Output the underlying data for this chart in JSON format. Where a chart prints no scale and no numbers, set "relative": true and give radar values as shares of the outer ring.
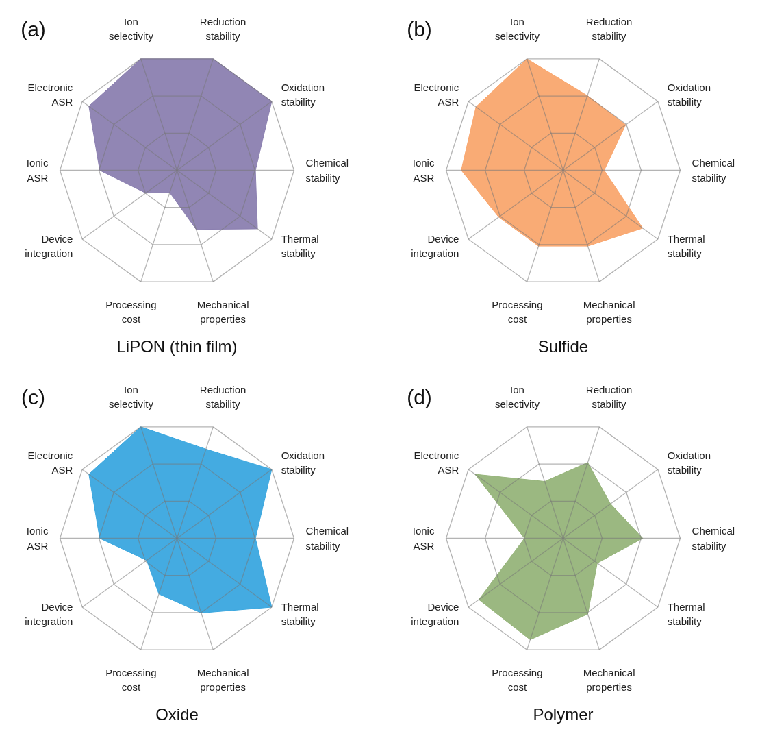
{
  "chart_data": [
    {
      "type": "radar",
      "title": "LiPON (thin film)",
      "annotations": [
        "(a)"
      ],
      "relative": true,
      "grid": true,
      "categories": [
        "Reduction stability",
        "Oxidation stability",
        "Chemical stability",
        "Thermal stability",
        "Mechanical properties",
        "Processing cost",
        "Device integration",
        "Ionic ASR",
        "Electronic ASR",
        "Ion selectivity"
      ],
      "series": [
        {
          "color": "#8b7fb0",
          "values": [
            1,
            1,
            0.67,
            0.85,
            0.53,
            0.2,
            0.33,
            0.66,
            0.93,
            1
          ]
        }
      ]
    },
    {
      "type": "radar",
      "title": "Sulfide",
      "annotations": [
        "(b)"
      ],
      "relative": true,
      "grid": true,
      "categories": [
        "Reduction stability",
        "Oxidation stability",
        "Chemical stability",
        "Thermal stability",
        "Mechanical properties",
        "Processing cost",
        "Device integration",
        "Ionic ASR",
        "Electronic ASR",
        "Ion selectivity"
      ],
      "series": [
        {
          "color": "#f9a66e",
          "values": [
            0.67,
            0.66,
            0.35,
            0.84,
            0.68,
            0.68,
            0.68,
            0.87,
            0.92,
            1
          ]
        }
      ]
    },
    {
      "type": "radar",
      "title": "Oxide",
      "annotations": [
        "(c)"
      ],
      "relative": true,
      "grid": true,
      "categories": [
        "Reduction stability",
        "Oxidation stability",
        "Chemical stability",
        "Thermal stability",
        "Mechanical properties",
        "Processing cost",
        "Device integration",
        "Ionic ASR",
        "Electronic ASR",
        "Ion selectivity"
      ],
      "series": [
        {
          "color": "#3aa7df",
          "values": [
            0.8,
            1,
            0.67,
            1,
            0.67,
            0.5,
            0.32,
            0.66,
            0.93,
            1
          ]
        }
      ]
    },
    {
      "type": "radar",
      "title": "Polymer",
      "annotations": [
        "(d)"
      ],
      "relative": true,
      "grid": true,
      "categories": [
        "Reduction stability",
        "Oxidation stability",
        "Chemical stability",
        "Thermal stability",
        "Mechanical properties",
        "Processing cost",
        "Device integration",
        "Ionic ASR",
        "Electronic ASR",
        "Ion selectivity"
      ],
      "series": [
        {
          "color": "#96b47a",
          "values": [
            0.68,
            0.5,
            0.68,
            0.36,
            0.68,
            0.91,
            0.89,
            0.33,
            0.93,
            0.51
          ]
        }
      ]
    }
  ]
}
